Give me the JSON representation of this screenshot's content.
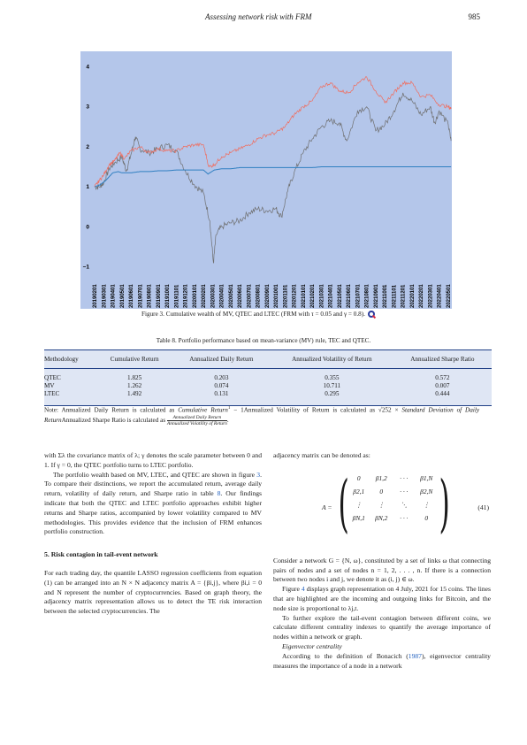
{
  "header": {
    "title": "Assessing network risk with FRM",
    "page_number": "985"
  },
  "figure": {
    "caption": "Figure 3.  Cumulative wealth of MV, QTEC and LTEC (FRM with τ = 0.05 and γ = 0.8).",
    "icon": "quantlet-search-icon",
    "colors": {
      "background": "#b4c6ea",
      "qtec": "#f26b5b",
      "mv": "#6e6e6e",
      "ltec": "#2f7fc1"
    }
  },
  "chart_data": {
    "type": "line",
    "title": "",
    "xlabel": "",
    "ylabel": "",
    "ylim": [
      -1.1,
      4.3
    ],
    "yticks": [
      -1,
      0,
      1,
      2,
      3,
      4
    ],
    "grid": false,
    "legend": "none",
    "x_tick_labels": [
      "20190201",
      "20190301",
      "20190401",
      "20190501",
      "20190601",
      "20190701",
      "20190801",
      "20190901",
      "20191001",
      "20191101",
      "20191201",
      "20200101",
      "20200201",
      "20200301",
      "20200401",
      "20200501",
      "20200601",
      "20200701",
      "20200801",
      "20200901",
      "20201001",
      "20201101",
      "20201201",
      "20210101",
      "20210201",
      "20210301",
      "20210401",
      "20210501",
      "20210601",
      "20210701",
      "20210801",
      "20210901",
      "20211001",
      "20211101",
      "20211201",
      "20220101",
      "20220201",
      "20220301",
      "20220401",
      "20220501"
    ],
    "series": [
      {
        "key": "qtec",
        "color": "#f26b5b",
        "points": [
          [
            0,
            1.0
          ],
          [
            0.5,
            1.15
          ],
          [
            1,
            1.3
          ],
          [
            1.6,
            1.55
          ],
          [
            2.2,
            1.65
          ],
          [
            2.8,
            1.85
          ],
          [
            3.3,
            1.7
          ],
          [
            4,
            1.9
          ],
          [
            5,
            2.0
          ],
          [
            6,
            1.85
          ],
          [
            7,
            1.95
          ],
          [
            8,
            1.9
          ],
          [
            9,
            1.9
          ],
          [
            10,
            2.0
          ],
          [
            11,
            2.05
          ],
          [
            12,
            2.05
          ],
          [
            12.6,
            1.5
          ],
          [
            13.2,
            1.55
          ],
          [
            14,
            1.75
          ],
          [
            15,
            1.85
          ],
          [
            16,
            1.95
          ],
          [
            17,
            2.05
          ],
          [
            18,
            2.2
          ],
          [
            19,
            2.3
          ],
          [
            20,
            2.35
          ],
          [
            21,
            2.5
          ],
          [
            22,
            2.8
          ],
          [
            23,
            3.0
          ],
          [
            24,
            3.15
          ],
          [
            25,
            3.5
          ],
          [
            26,
            3.6
          ],
          [
            27,
            3.4
          ],
          [
            28,
            3.35
          ],
          [
            29,
            3.6
          ],
          [
            30,
            3.75
          ],
          [
            31,
            3.4
          ],
          [
            32,
            3.1
          ],
          [
            33,
            3.35
          ],
          [
            34,
            3.6
          ],
          [
            35,
            3.6
          ],
          [
            36,
            3.25
          ],
          [
            37,
            3.3
          ],
          [
            38,
            3.05
          ],
          [
            39,
            3.0
          ],
          [
            39.3,
            2.95
          ]
        ]
      },
      {
        "key": "mv",
        "color": "#6e6e6e",
        "points": [
          [
            0,
            1.0
          ],
          [
            0.5,
            1.0
          ],
          [
            1,
            1.1
          ],
          [
            1.6,
            1.45
          ],
          [
            2.2,
            1.6
          ],
          [
            3,
            1.75
          ],
          [
            3.5,
            1.4
          ],
          [
            4,
            1.8
          ],
          [
            4.5,
            2.25
          ],
          [
            5,
            1.95
          ],
          [
            6,
            1.85
          ],
          [
            7,
            1.95
          ],
          [
            8,
            2.05
          ],
          [
            9,
            1.9
          ],
          [
            10,
            1.4
          ],
          [
            11,
            1.05
          ],
          [
            12,
            0.85
          ],
          [
            12.7,
            0.15
          ],
          [
            13.1,
            -0.9
          ],
          [
            13.4,
            -0.2
          ],
          [
            14,
            0.0
          ],
          [
            15,
            0.1
          ],
          [
            16,
            0.15
          ],
          [
            17,
            0.35
          ],
          [
            18,
            0.45
          ],
          [
            19,
            0.4
          ],
          [
            20,
            0.45
          ],
          [
            20.6,
            0.25
          ],
          [
            21.3,
            0.9
          ],
          [
            22,
            1.35
          ],
          [
            23,
            1.85
          ],
          [
            24,
            2.2
          ],
          [
            25,
            2.5
          ],
          [
            26,
            2.65
          ],
          [
            27,
            2.6
          ],
          [
            27.8,
            2.15
          ],
          [
            29,
            2.9
          ],
          [
            30,
            3.0
          ],
          [
            31,
            2.4
          ],
          [
            32,
            2.55
          ],
          [
            33,
            2.9
          ],
          [
            34,
            3.35
          ],
          [
            35,
            3.15
          ],
          [
            36,
            2.8
          ],
          [
            37,
            3.0
          ],
          [
            37.5,
            2.6
          ],
          [
            38,
            2.9
          ],
          [
            39,
            2.55
          ],
          [
            39.3,
            2.15
          ]
        ]
      },
      {
        "key": "ltec",
        "color": "#2f7fc1",
        "points": [
          [
            0,
            1.0
          ],
          [
            0.6,
            1.05
          ],
          [
            1.2,
            1.15
          ],
          [
            2.0,
            1.35
          ],
          [
            2.6,
            1.38
          ],
          [
            3,
            1.35
          ],
          [
            4,
            1.35
          ],
          [
            5,
            1.38
          ],
          [
            6,
            1.38
          ],
          [
            7,
            1.4
          ],
          [
            8,
            1.4
          ],
          [
            9,
            1.42
          ],
          [
            10,
            1.42
          ],
          [
            11,
            1.42
          ],
          [
            12,
            1.42
          ],
          [
            12.5,
            1.32
          ],
          [
            13.2,
            1.42
          ],
          [
            14,
            1.45
          ],
          [
            15,
            1.45
          ],
          [
            16,
            1.48
          ],
          [
            17,
            1.48
          ],
          [
            18,
            1.48
          ],
          [
            19,
            1.48
          ],
          [
            20,
            1.48
          ],
          [
            21,
            1.48
          ],
          [
            22,
            1.48
          ],
          [
            23,
            1.48
          ],
          [
            24,
            1.48
          ],
          [
            25,
            1.5
          ],
          [
            26,
            1.5
          ],
          [
            27,
            1.5
          ],
          [
            28,
            1.5
          ],
          [
            29,
            1.5
          ],
          [
            30,
            1.5
          ],
          [
            31,
            1.5
          ],
          [
            32,
            1.5
          ],
          [
            33,
            1.5
          ],
          [
            34,
            1.5
          ],
          [
            35,
            1.5
          ],
          [
            36,
            1.5
          ],
          [
            37,
            1.5
          ],
          [
            38,
            1.5
          ],
          [
            39,
            1.5
          ],
          [
            39.3,
            1.5
          ]
        ]
      }
    ]
  },
  "table": {
    "title": "Table  8.  Portfolio performance based on mean-variance (MV) rule, TEC and QTEC.",
    "headers": [
      "Methodology",
      "Cumulative Return",
      "Annualized Daily Return",
      "Annualized Volatility of Return",
      "Annualized Sharpe Ratio"
    ],
    "rows": [
      [
        "QTEC",
        "1.825",
        "0.203",
        "0.355",
        "0.572"
      ],
      [
        "MV",
        "1.262",
        "0.074",
        "10.711",
        "0.007"
      ],
      [
        "LTEC",
        "1.492",
        "0.131",
        "0.295",
        "0.444"
      ]
    ],
    "note": {
      "a": "Note: Annualized Daily Return is calculated as ",
      "b": "Cumulative Return",
      "c": " − 1Annualized Volatility of Return is calculated as ",
      "d": "√252 ×",
      "e": "Standard Deviation of Daily Return",
      "f": "Annualized Sharpe Ratio is calculated as ",
      "g": "Annualized Daily Return",
      "h": "Annualized Volatility of Return",
      "i": "."
    }
  },
  "left_column": {
    "p1": "with Σλ the covariance matrix of λ; γ denotes the scale parameter between 0 and 1. If γ = 0, the QTEC portfolio turns to LTEC portfolio.",
    "p2a": "The portfolio wealth based on MV, LTEC, and QTEC are shown in figure ",
    "p2_fig": "3",
    "p2b": ". To compare their distinctions, we report the accumulated return, average daily return, volatility of daily return, and Sharpe ratio in table ",
    "p2_tab": "8",
    "p2c": ". Our findings indicate that both the QTEC and LTEC portfolio approaches exhibit higher returns and Sharpe ratios, accompanied by lower volatility compared to MV methodologies. This provides evidence that the inclusion of FRM enhances portfolio construction.",
    "section_heading": "5.  Risk contagion in tail-event network",
    "p3": "For each trading day, the quantile LASSO regression coefficients from equation (1) can be arranged into an N × N adjacency matrix A = {βi,j}, where βi,i = 0 and N represent the number of cryptocurrencies. Based on graph theory, the adjacency matrix representation allows us to detect the TE risk interaction between the selected cryptocurrencies. The"
  },
  "right_column": {
    "p1": "adjacency matrix can be denoted as:",
    "matrix_lhs": "A =",
    "matrix_rows": [
      [
        "0",
        "β1,2",
        "· · ·",
        "β1,N"
      ],
      [
        "β2,1",
        "0",
        "· · ·",
        "β2,N"
      ],
      [
        "⋮",
        "⋮",
        "⋱",
        "⋮"
      ],
      [
        "βN,1",
        "βN,2",
        "· · ·",
        "0"
      ]
    ],
    "eq_number": "(41)",
    "p2": "Consider a network G = {N, ω}, constituted by a set of links ω that connecting pairs of nodes and a set of nodes n = 1, 2, . . . , n. If there is a connection between two nodes i and j, we denote it as (i, j) ∈ ω.",
    "p3a": "Figure ",
    "p3_fig": "4",
    "p3b": " displays graph representation on 4 July, 2021 for 15 coins. The lines that are highlighted are the incoming and outgoing links for Bitcoin, and the node size is proportional to λj,t.",
    "p4": "To further explore the tail-event contagion between different coins, we calculate different centrality indexes to quantify the average importance of nodes within a network or graph.",
    "subhead": "Eigenvector centrality",
    "p5a": "According to the definition of Bonacich (",
    "p5_ref": "1987",
    "p5b": "), eigenvector centrality measures the importance of a node in a network"
  }
}
